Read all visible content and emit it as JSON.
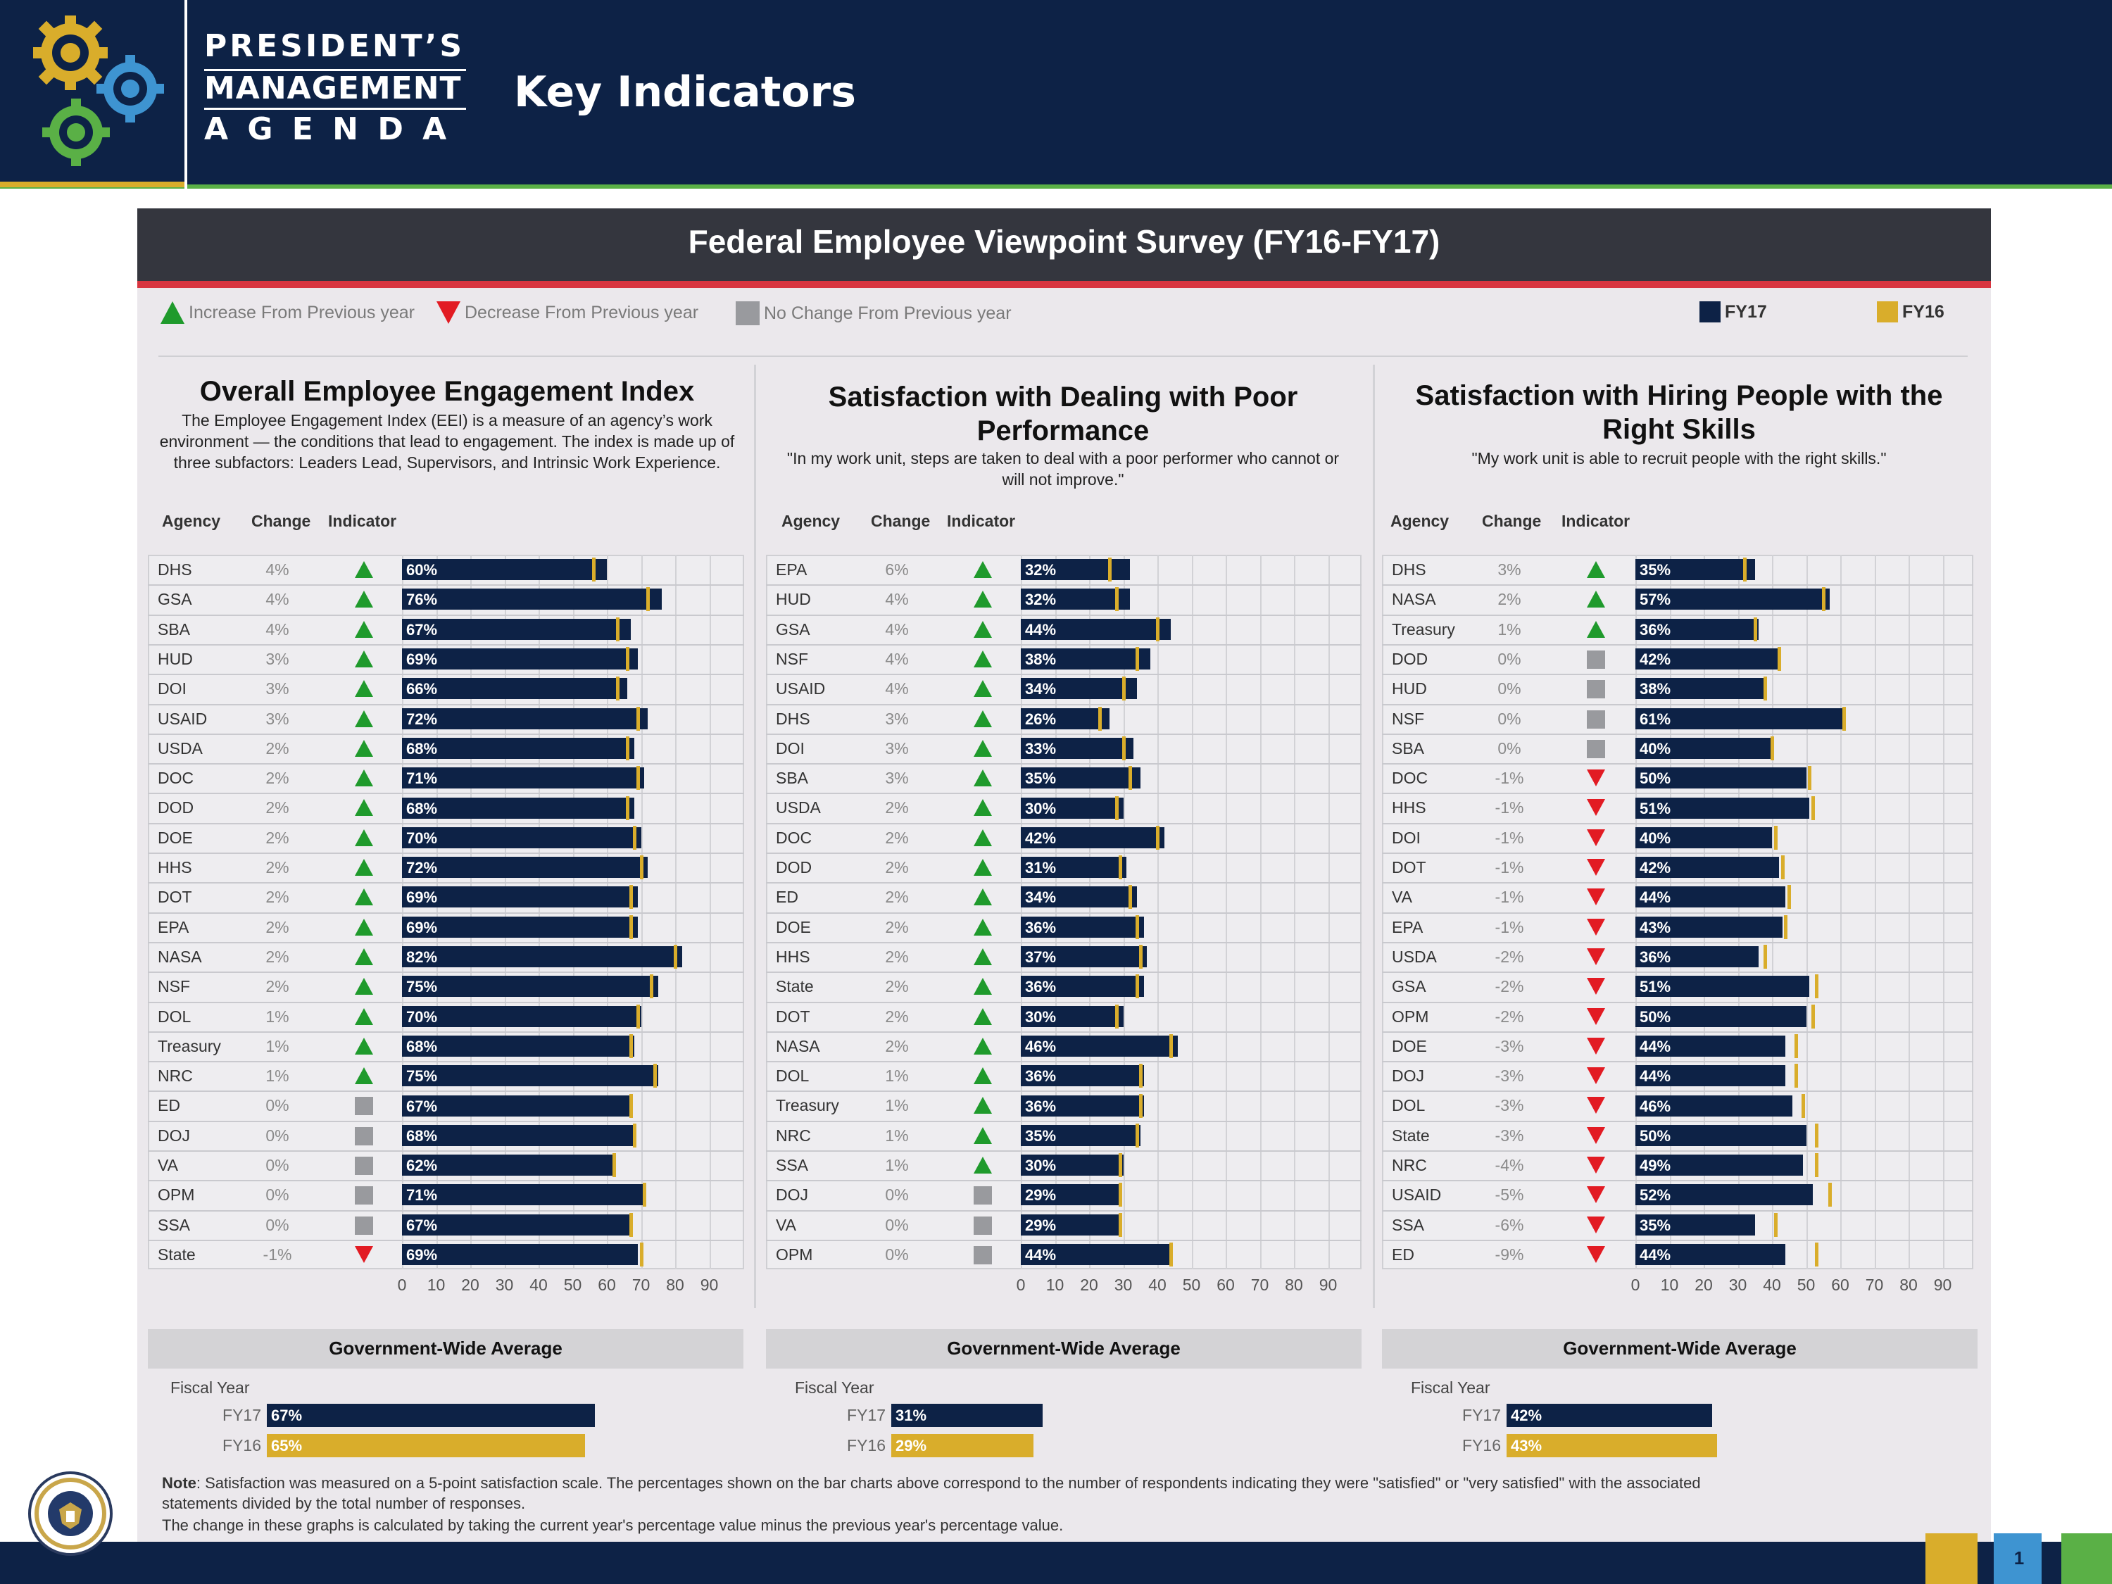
{
  "header": {
    "logo_line1": "PRESIDENT’S",
    "logo_line2": "MANAGEMENT",
    "logo_line3": "A G E N D A",
    "page_title": "Key Indicators"
  },
  "colors": {
    "navy": "#0d2246",
    "gold": "#d9ad2b",
    "increase": "#1f9a2c",
    "decrease": "#e21b23",
    "nochange": "#999a9e"
  },
  "banner_title": "Federal Employee Viewpoint Survey (FY16-FY17)",
  "legend": {
    "increase": "Increase From Previous year",
    "decrease": "Decrease From Previous year",
    "nochange": "No Change From Previous year",
    "fy17": "FY17",
    "fy16": "FY16"
  },
  "column_headers": {
    "agency": "Agency",
    "change": "Change",
    "indicator": "Indicator"
  },
  "avg_title": "Government-Wide Average",
  "fiscal_year_label": "Fiscal Year",
  "chart_data": [
    {
      "type": "bar",
      "title": "Overall Employee Engagement Index",
      "description": "The Employee Engagement Index (EEI) is a measure of an agency’s work environment — the conditions that lead to engagement. The index is made up of three subfactors: Leaders Lead, Supervisors, and Intrinsic Work Experience.",
      "xlim": [
        0,
        100
      ],
      "xticks": [
        0,
        10,
        20,
        30,
        40,
        50,
        60,
        70,
        80,
        90
      ],
      "legend": "top-right",
      "rows": [
        {
          "agency": "DHS",
          "change": "4%",
          "indicator": "up",
          "fy17": 60,
          "fy16": 56
        },
        {
          "agency": "GSA",
          "change": "4%",
          "indicator": "up",
          "fy17": 76,
          "fy16": 72
        },
        {
          "agency": "SBA",
          "change": "4%",
          "indicator": "up",
          "fy17": 67,
          "fy16": 63
        },
        {
          "agency": "HUD",
          "change": "3%",
          "indicator": "up",
          "fy17": 69,
          "fy16": 66
        },
        {
          "agency": "DOI",
          "change": "3%",
          "indicator": "up",
          "fy17": 66,
          "fy16": 63
        },
        {
          "agency": "USAID",
          "change": "3%",
          "indicator": "up",
          "fy17": 72,
          "fy16": 69
        },
        {
          "agency": "USDA",
          "change": "2%",
          "indicator": "up",
          "fy17": 68,
          "fy16": 66
        },
        {
          "agency": "DOC",
          "change": "2%",
          "indicator": "up",
          "fy17": 71,
          "fy16": 69
        },
        {
          "agency": "DOD",
          "change": "2%",
          "indicator": "up",
          "fy17": 68,
          "fy16": 66
        },
        {
          "agency": "DOE",
          "change": "2%",
          "indicator": "up",
          "fy17": 70,
          "fy16": 68
        },
        {
          "agency": "HHS",
          "change": "2%",
          "indicator": "up",
          "fy17": 72,
          "fy16": 70
        },
        {
          "agency": "DOT",
          "change": "2%",
          "indicator": "up",
          "fy17": 69,
          "fy16": 67
        },
        {
          "agency": "EPA",
          "change": "2%",
          "indicator": "up",
          "fy17": 69,
          "fy16": 67
        },
        {
          "agency": "NASA",
          "change": "2%",
          "indicator": "up",
          "fy17": 82,
          "fy16": 80
        },
        {
          "agency": "NSF",
          "change": "2%",
          "indicator": "up",
          "fy17": 75,
          "fy16": 73
        },
        {
          "agency": "DOL",
          "change": "1%",
          "indicator": "up",
          "fy17": 70,
          "fy16": 69
        },
        {
          "agency": "Treasury",
          "change": "1%",
          "indicator": "up",
          "fy17": 68,
          "fy16": 67
        },
        {
          "agency": "NRC",
          "change": "1%",
          "indicator": "up",
          "fy17": 75,
          "fy16": 74
        },
        {
          "agency": "ED",
          "change": "0%",
          "indicator": "same",
          "fy17": 67,
          "fy16": 67
        },
        {
          "agency": "DOJ",
          "change": "0%",
          "indicator": "same",
          "fy17": 68,
          "fy16": 68
        },
        {
          "agency": "VA",
          "change": "0%",
          "indicator": "same",
          "fy17": 62,
          "fy16": 62
        },
        {
          "agency": "OPM",
          "change": "0%",
          "indicator": "same",
          "fy17": 71,
          "fy16": 71
        },
        {
          "agency": "SSA",
          "change": "0%",
          "indicator": "same",
          "fy17": 67,
          "fy16": 67
        },
        {
          "agency": "State",
          "change": "-1%",
          "indicator": "down",
          "fy17": 69,
          "fy16": 70
        }
      ],
      "average": [
        {
          "year": "FY17",
          "value": 67,
          "label": "67%"
        },
        {
          "year": "FY16",
          "value": 65,
          "label": "65%"
        }
      ]
    },
    {
      "type": "bar",
      "title": "Satisfaction with Dealing with Poor Performance",
      "description": "\"In my work unit, steps are taken to deal with a poor performer who cannot or will not improve.\"",
      "xlim": [
        0,
        100
      ],
      "xticks": [
        0,
        10,
        20,
        30,
        40,
        50,
        60,
        70,
        80,
        90
      ],
      "rows": [
        {
          "agency": "EPA",
          "change": "6%",
          "indicator": "up",
          "fy17": 32,
          "fy16": 26
        },
        {
          "agency": "HUD",
          "change": "4%",
          "indicator": "up",
          "fy17": 32,
          "fy16": 28
        },
        {
          "agency": "GSA",
          "change": "4%",
          "indicator": "up",
          "fy17": 44,
          "fy16": 40
        },
        {
          "agency": "NSF",
          "change": "4%",
          "indicator": "up",
          "fy17": 38,
          "fy16": 34
        },
        {
          "agency": "USAID",
          "change": "4%",
          "indicator": "up",
          "fy17": 34,
          "fy16": 30
        },
        {
          "agency": "DHS",
          "change": "3%",
          "indicator": "up",
          "fy17": 26,
          "fy16": 23
        },
        {
          "agency": "DOI",
          "change": "3%",
          "indicator": "up",
          "fy17": 33,
          "fy16": 30
        },
        {
          "agency": "SBA",
          "change": "3%",
          "indicator": "up",
          "fy17": 35,
          "fy16": 32
        },
        {
          "agency": "USDA",
          "change": "2%",
          "indicator": "up",
          "fy17": 30,
          "fy16": 28
        },
        {
          "agency": "DOC",
          "change": "2%",
          "indicator": "up",
          "fy17": 42,
          "fy16": 40
        },
        {
          "agency": "DOD",
          "change": "2%",
          "indicator": "up",
          "fy17": 31,
          "fy16": 29
        },
        {
          "agency": "ED",
          "change": "2%",
          "indicator": "up",
          "fy17": 34,
          "fy16": 32
        },
        {
          "agency": "DOE",
          "change": "2%",
          "indicator": "up",
          "fy17": 36,
          "fy16": 34
        },
        {
          "agency": "HHS",
          "change": "2%",
          "indicator": "up",
          "fy17": 37,
          "fy16": 35
        },
        {
          "agency": "State",
          "change": "2%",
          "indicator": "up",
          "fy17": 36,
          "fy16": 34
        },
        {
          "agency": "DOT",
          "change": "2%",
          "indicator": "up",
          "fy17": 30,
          "fy16": 28
        },
        {
          "agency": "NASA",
          "change": "2%",
          "indicator": "up",
          "fy17": 46,
          "fy16": 44
        },
        {
          "agency": "DOL",
          "change": "1%",
          "indicator": "up",
          "fy17": 36,
          "fy16": 35
        },
        {
          "agency": "Treasury",
          "change": "1%",
          "indicator": "up",
          "fy17": 36,
          "fy16": 35
        },
        {
          "agency": "NRC",
          "change": "1%",
          "indicator": "up",
          "fy17": 35,
          "fy16": 34
        },
        {
          "agency": "SSA",
          "change": "1%",
          "indicator": "up",
          "fy17": 30,
          "fy16": 29
        },
        {
          "agency": "DOJ",
          "change": "0%",
          "indicator": "same",
          "fy17": 29,
          "fy16": 29
        },
        {
          "agency": "VA",
          "change": "0%",
          "indicator": "same",
          "fy17": 29,
          "fy16": 29
        },
        {
          "agency": "OPM",
          "change": "0%",
          "indicator": "same",
          "fy17": 44,
          "fy16": 44
        }
      ],
      "average": [
        {
          "year": "FY17",
          "value": 31,
          "label": "31%"
        },
        {
          "year": "FY16",
          "value": 29,
          "label": "29%"
        }
      ]
    },
    {
      "type": "bar",
      "title": "Satisfaction with Hiring People with the Right Skills",
      "description": "\"My work unit is able to recruit people with the right skills.\"",
      "xlim": [
        0,
        100
      ],
      "xticks": [
        0,
        10,
        20,
        30,
        40,
        50,
        60,
        70,
        80,
        90
      ],
      "rows": [
        {
          "agency": "DHS",
          "change": "3%",
          "indicator": "up",
          "fy17": 35,
          "fy16": 32
        },
        {
          "agency": "NASA",
          "change": "2%",
          "indicator": "up",
          "fy17": 57,
          "fy16": 55
        },
        {
          "agency": "Treasury",
          "change": "1%",
          "indicator": "up",
          "fy17": 36,
          "fy16": 35
        },
        {
          "agency": "DOD",
          "change": "0%",
          "indicator": "same",
          "fy17": 42,
          "fy16": 42
        },
        {
          "agency": "HUD",
          "change": "0%",
          "indicator": "same",
          "fy17": 38,
          "fy16": 38
        },
        {
          "agency": "NSF",
          "change": "0%",
          "indicator": "same",
          "fy17": 61,
          "fy16": 61
        },
        {
          "agency": "SBA",
          "change": "0%",
          "indicator": "same",
          "fy17": 40,
          "fy16": 40
        },
        {
          "agency": "DOC",
          "change": "-1%",
          "indicator": "down",
          "fy17": 50,
          "fy16": 51
        },
        {
          "agency": "HHS",
          "change": "-1%",
          "indicator": "down",
          "fy17": 51,
          "fy16": 52
        },
        {
          "agency": "DOI",
          "change": "-1%",
          "indicator": "down",
          "fy17": 40,
          "fy16": 41
        },
        {
          "agency": "DOT",
          "change": "-1%",
          "indicator": "down",
          "fy17": 42,
          "fy16": 43
        },
        {
          "agency": "VA",
          "change": "-1%",
          "indicator": "down",
          "fy17": 44,
          "fy16": 45
        },
        {
          "agency": "EPA",
          "change": "-1%",
          "indicator": "down",
          "fy17": 43,
          "fy16": 44
        },
        {
          "agency": "USDA",
          "change": "-2%",
          "indicator": "down",
          "fy17": 36,
          "fy16": 38
        },
        {
          "agency": "GSA",
          "change": "-2%",
          "indicator": "down",
          "fy17": 51,
          "fy16": 53
        },
        {
          "agency": "OPM",
          "change": "-2%",
          "indicator": "down",
          "fy17": 50,
          "fy16": 52
        },
        {
          "agency": "DOE",
          "change": "-3%",
          "indicator": "down",
          "fy17": 44,
          "fy16": 47
        },
        {
          "agency": "DOJ",
          "change": "-3%",
          "indicator": "down",
          "fy17": 44,
          "fy16": 47
        },
        {
          "agency": "DOL",
          "change": "-3%",
          "indicator": "down",
          "fy17": 46,
          "fy16": 49
        },
        {
          "agency": "State",
          "change": "-3%",
          "indicator": "down",
          "fy17": 50,
          "fy16": 53
        },
        {
          "agency": "NRC",
          "change": "-4%",
          "indicator": "down",
          "fy17": 49,
          "fy16": 53
        },
        {
          "agency": "USAID",
          "change": "-5%",
          "indicator": "down",
          "fy17": 52,
          "fy16": 57
        },
        {
          "agency": "SSA",
          "change": "-6%",
          "indicator": "down",
          "fy17": 35,
          "fy16": 41
        },
        {
          "agency": "ED",
          "change": "-9%",
          "indicator": "down",
          "fy17": 44,
          "fy16": 53
        }
      ],
      "average": [
        {
          "year": "FY17",
          "value": 42,
          "label": "42%"
        },
        {
          "year": "FY16",
          "value": 43,
          "label": "43%"
        }
      ]
    }
  ],
  "note": {
    "label": "Note",
    "line1": ": Satisfaction was measured on a 5-point satisfaction scale. The percentages shown on the bar charts above correspond to the number of respondents indicating they were \"satisfied\" or \"very satisfied\" with the associated",
    "line2": "statements divided by the total number of responses.",
    "line3": "The change in these graphs is calculated by taking the current year's percentage value minus the previous year's percentage value."
  },
  "page_number": "1"
}
